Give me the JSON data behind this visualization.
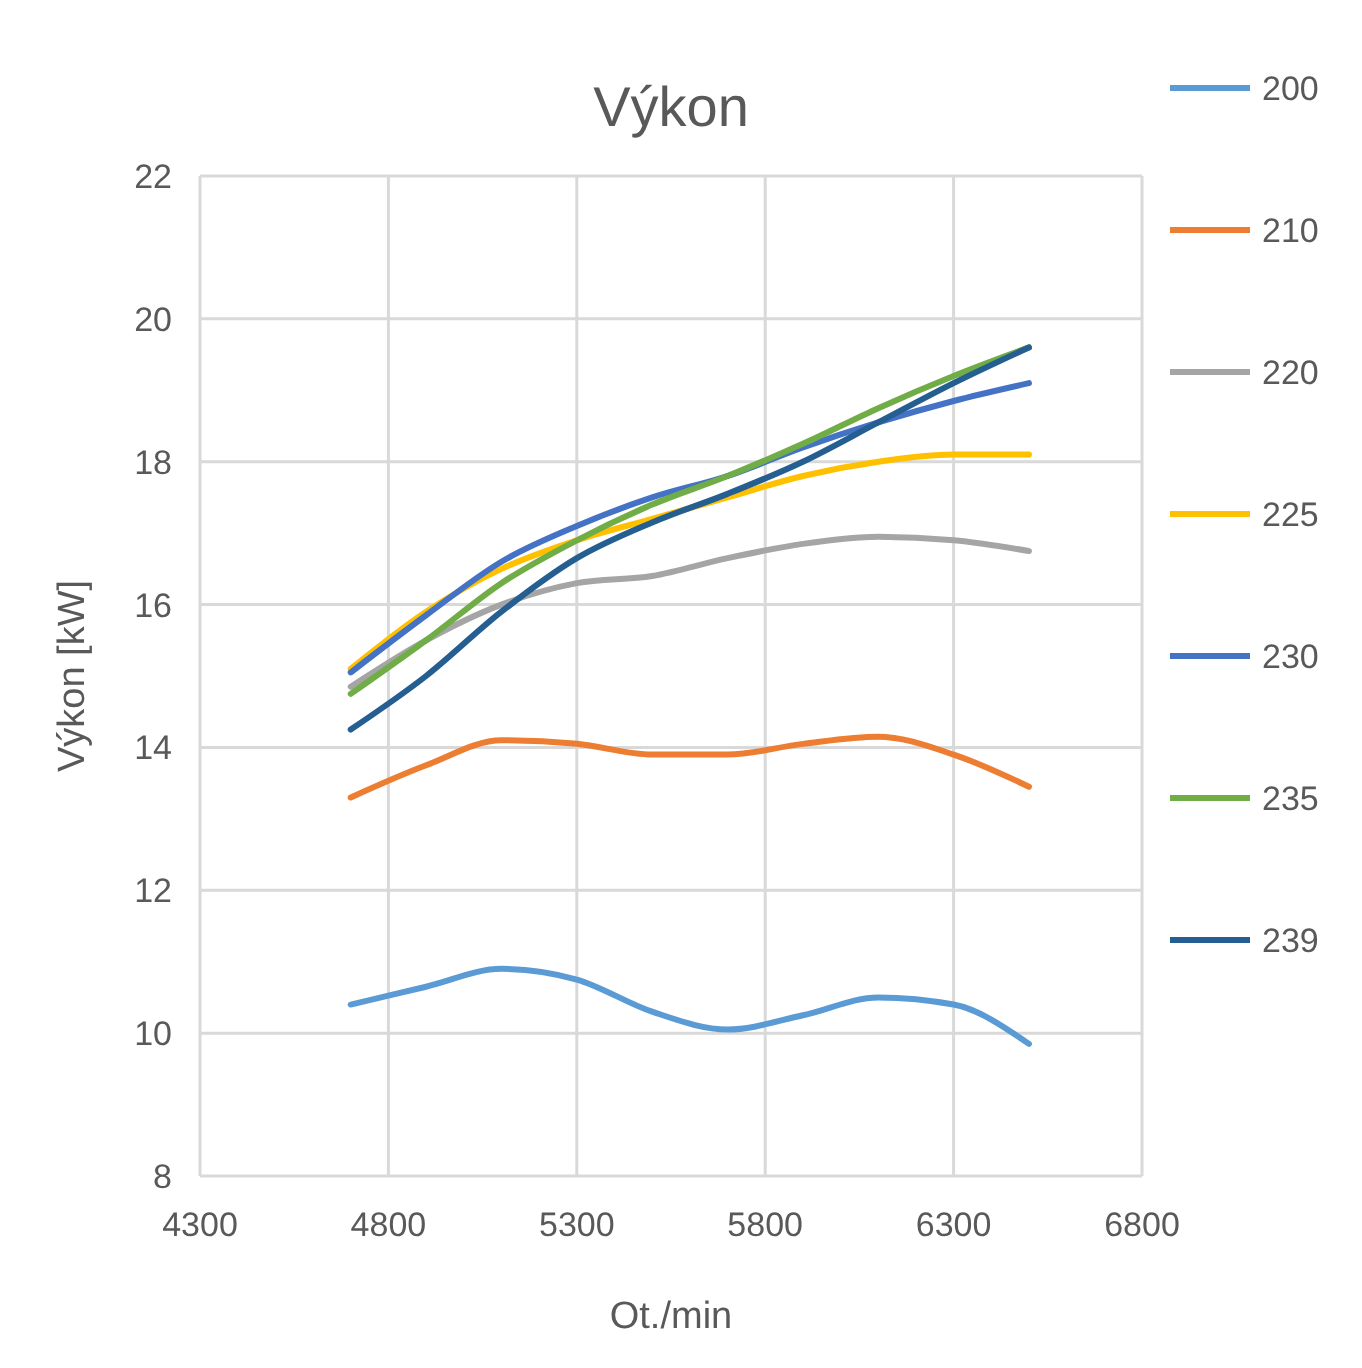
{
  "chart_data": {
    "type": "line",
    "title": "Výkon",
    "xlabel": "Ot./min",
    "ylabel": "Výkon [kW]",
    "x": [
      4700,
      4900,
      5100,
      5300,
      5500,
      5700,
      5900,
      6100,
      6300,
      6500
    ],
    "series": [
      {
        "name": "200",
        "color": "#5b9bd5",
        "values": [
          10.4,
          10.65,
          10.9,
          10.75,
          10.3,
          10.05,
          10.25,
          10.5,
          10.4,
          9.85
        ]
      },
      {
        "name": "210",
        "color": "#ed7d31",
        "values": [
          13.3,
          13.75,
          14.1,
          14.05,
          13.9,
          13.9,
          14.05,
          14.15,
          13.9,
          13.45
        ]
      },
      {
        "name": "220",
        "color": "#a5a5a5",
        "values": [
          14.85,
          15.5,
          16.0,
          16.3,
          16.4,
          16.65,
          16.85,
          16.95,
          16.9,
          16.75
        ]
      },
      {
        "name": "225",
        "color": "#ffc000",
        "values": [
          15.1,
          15.9,
          16.5,
          16.9,
          17.2,
          17.5,
          17.8,
          18.0,
          18.1,
          18.1
        ]
      },
      {
        "name": "230",
        "color": "#4472c4",
        "values": [
          15.05,
          15.85,
          16.6,
          17.1,
          17.5,
          17.8,
          18.2,
          18.55,
          18.85,
          19.1
        ]
      },
      {
        "name": "235",
        "color": "#70ad47",
        "values": [
          14.75,
          15.5,
          16.3,
          16.9,
          17.4,
          17.8,
          18.25,
          18.75,
          19.2,
          19.6
        ]
      },
      {
        "name": "239",
        "color": "#255e91",
        "values": [
          14.25,
          15.0,
          15.9,
          16.65,
          17.15,
          17.55,
          18.0,
          18.55,
          19.1,
          19.6
        ]
      }
    ],
    "xlim": [
      4300,
      6800
    ],
    "xticks": [
      4300,
      4800,
      5300,
      5800,
      6300,
      6800
    ],
    "ylim": [
      8,
      22
    ],
    "yticks": [
      8,
      10,
      12,
      14,
      16,
      18,
      20,
      22
    ],
    "grid": true,
    "legend": "right",
    "marker": "none",
    "line_style": "solid"
  }
}
